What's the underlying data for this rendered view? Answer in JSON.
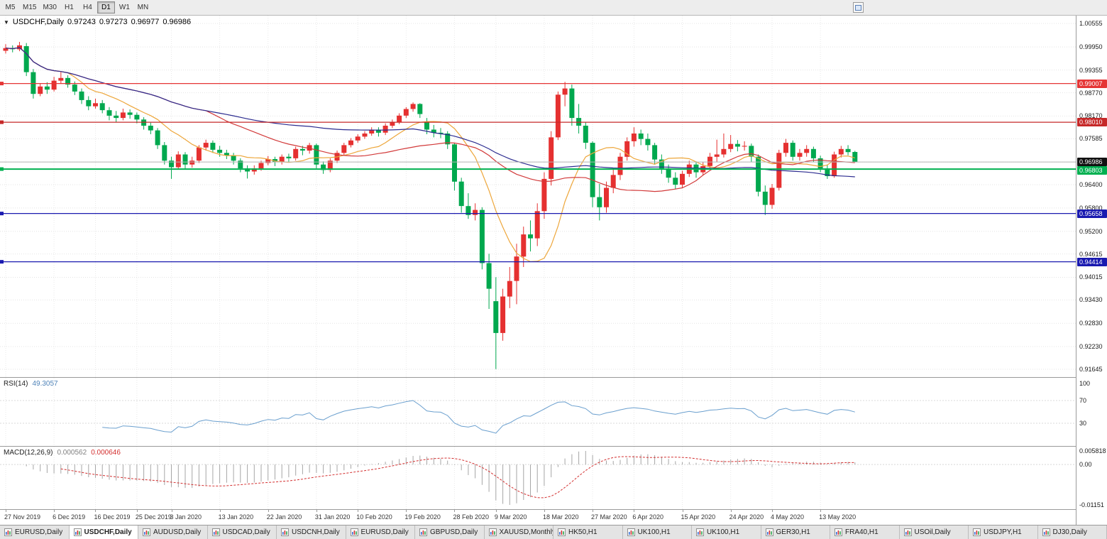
{
  "toolbar": {
    "timeframes": [
      "M5",
      "M15",
      "M30",
      "H1",
      "H4",
      "D1",
      "W1",
      "MN"
    ],
    "active_timeframe": "D1"
  },
  "chart_data": {
    "type": "candlestick",
    "symbol": "USDCHF",
    "period": "Daily",
    "title": "USDCHF,Daily",
    "ohlc_display": {
      "open": "0.97243",
      "high": "0.97273",
      "low": "0.96977",
      "close": "0.96986"
    },
    "y_axis_ticks": [
      "1.00555",
      "0.99950",
      "0.99355",
      "0.98770",
      "0.98170",
      "0.97585",
      "0.96985",
      "0.96400",
      "0.95800",
      "0.95200",
      "0.94615",
      "0.94015",
      "0.93430",
      "0.92830",
      "0.92230",
      "0.91645"
    ],
    "x_labels": [
      {
        "text": "27 Nov 2019",
        "bar": 0
      },
      {
        "text": "6 Dec 2019",
        "bar": 7
      },
      {
        "text": "16 Dec 2019",
        "bar": 13
      },
      {
        "text": "25 Dec 2019",
        "bar": 19
      },
      {
        "text": "3 Jan 2020",
        "bar": 24
      },
      {
        "text": "13 Jan 2020",
        "bar": 31
      },
      {
        "text": "22 Jan 2020",
        "bar": 38
      },
      {
        "text": "31 Jan 2020",
        "bar": 45
      },
      {
        "text": "10 Feb 2020",
        "bar": 51
      },
      {
        "text": "19 Feb 2020",
        "bar": 58
      },
      {
        "text": "28 Feb 2020",
        "bar": 65
      },
      {
        "text": "9 Mar 2020",
        "bar": 71
      },
      {
        "text": "18 Mar 2020",
        "bar": 78
      },
      {
        "text": "27 Mar 2020",
        "bar": 85
      },
      {
        "text": "6 Apr 2020",
        "bar": 91
      },
      {
        "text": "15 Apr 2020",
        "bar": 98
      },
      {
        "text": "24 Apr 2020",
        "bar": 105
      },
      {
        "text": "4 May 2020",
        "bar": 111
      },
      {
        "text": "13 May 2020",
        "bar": 118
      }
    ],
    "current_price": {
      "text": "0.96986",
      "value": 0.96986
    },
    "horizontal_lines": [
      {
        "text": "0.99007",
        "value": 0.99007,
        "color": "#e53535"
      },
      {
        "text": "0.98010",
        "value": 0.9801,
        "color": "#c62828"
      },
      {
        "text": "0.96803",
        "value": 0.96803,
        "color": "#00b050"
      },
      {
        "text": "0.95658",
        "value": 0.95658,
        "color": "#1a1ab0"
      },
      {
        "text": "0.94414",
        "value": 0.94414,
        "color": "#1a1ab0"
      }
    ],
    "moving_averages": [
      {
        "period": 10,
        "color": "#eda63a"
      },
      {
        "period": 30,
        "color": "#d23a3a"
      },
      {
        "period": 60,
        "color": "#2b2b8f"
      }
    ],
    "candle_colors": {
      "bull": "#e53030",
      "bear": "#00a84e"
    },
    "candles_ohlc": [
      [
        0.9985,
        1.0002,
        0.9978,
        0.9992
      ],
      [
        0.9992,
        0.9999,
        0.9981,
        0.9989
      ],
      [
        0.9989,
        1.0008,
        0.9984,
        0.9999
      ],
      [
        0.9997,
        1.0005,
        0.992,
        0.993
      ],
      [
        0.993,
        0.9938,
        0.9862,
        0.9874
      ],
      [
        0.9874,
        0.9901,
        0.9868,
        0.9893
      ],
      [
        0.9893,
        0.9904,
        0.9874,
        0.9885
      ],
      [
        0.9885,
        0.9918,
        0.988,
        0.9908
      ],
      [
        0.9908,
        0.993,
        0.99,
        0.9915
      ],
      [
        0.9915,
        0.9922,
        0.989,
        0.9898
      ],
      [
        0.9898,
        0.9906,
        0.9871,
        0.988
      ],
      [
        0.988,
        0.9888,
        0.9848,
        0.9858
      ],
      [
        0.9858,
        0.9868,
        0.9832,
        0.9842
      ],
      [
        0.9842,
        0.9862,
        0.9836,
        0.985
      ],
      [
        0.985,
        0.9858,
        0.9824,
        0.9832
      ],
      [
        0.9832,
        0.984,
        0.9806,
        0.9818
      ],
      [
        0.9818,
        0.983,
        0.9802,
        0.9812
      ],
      [
        0.9812,
        0.9836,
        0.9806,
        0.9826
      ],
      [
        0.9826,
        0.9834,
        0.981,
        0.982
      ],
      [
        0.982,
        0.9826,
        0.9798,
        0.9808
      ],
      [
        0.9808,
        0.9814,
        0.9782,
        0.9792
      ],
      [
        0.9792,
        0.98,
        0.977,
        0.978
      ],
      [
        0.978,
        0.9786,
        0.9732,
        0.9742
      ],
      [
        0.9742,
        0.975,
        0.9692,
        0.9702
      ],
      [
        0.9702,
        0.9712,
        0.9655,
        0.9685
      ],
      [
        0.9685,
        0.9726,
        0.968,
        0.9718
      ],
      [
        0.9718,
        0.9724,
        0.968,
        0.9692
      ],
      [
        0.9692,
        0.9712,
        0.9684,
        0.9702
      ],
      [
        0.9702,
        0.9742,
        0.9696,
        0.9736
      ],
      [
        0.9736,
        0.9756,
        0.9728,
        0.9748
      ],
      [
        0.9748,
        0.9754,
        0.9722,
        0.973
      ],
      [
        0.973,
        0.974,
        0.9712,
        0.9722
      ],
      [
        0.9722,
        0.973,
        0.9706,
        0.9716
      ],
      [
        0.9716,
        0.9722,
        0.9692,
        0.9702
      ],
      [
        0.9702,
        0.9708,
        0.9672,
        0.9682
      ],
      [
        0.9682,
        0.969,
        0.9656,
        0.9674
      ],
      [
        0.9674,
        0.969,
        0.9666,
        0.9682
      ],
      [
        0.9682,
        0.9702,
        0.9676,
        0.9696
      ],
      [
        0.9696,
        0.9714,
        0.969,
        0.9706
      ],
      [
        0.9706,
        0.9712,
        0.9688,
        0.9699
      ],
      [
        0.9699,
        0.9718,
        0.9692,
        0.9712
      ],
      [
        0.9712,
        0.972,
        0.9698,
        0.9708
      ],
      [
        0.9708,
        0.9738,
        0.9702,
        0.9732
      ],
      [
        0.9732,
        0.974,
        0.9716,
        0.9728
      ],
      [
        0.9728,
        0.9748,
        0.972,
        0.9742
      ],
      [
        0.9742,
        0.9746,
        0.9682,
        0.9692
      ],
      [
        0.9692,
        0.97,
        0.9668,
        0.9678
      ],
      [
        0.9678,
        0.9708,
        0.9672,
        0.9702
      ],
      [
        0.9702,
        0.9728,
        0.9696,
        0.9722
      ],
      [
        0.9722,
        0.9748,
        0.9716,
        0.9742
      ],
      [
        0.9742,
        0.976,
        0.9736,
        0.9754
      ],
      [
        0.9754,
        0.977,
        0.9748,
        0.9764
      ],
      [
        0.9764,
        0.9778,
        0.9758,
        0.9772
      ],
      [
        0.9772,
        0.9788,
        0.9766,
        0.9782
      ],
      [
        0.9782,
        0.9788,
        0.9764,
        0.9774
      ],
      [
        0.9774,
        0.9798,
        0.9768,
        0.9792
      ],
      [
        0.9792,
        0.9808,
        0.9786,
        0.9802
      ],
      [
        0.9802,
        0.9824,
        0.9796,
        0.9818
      ],
      [
        0.9818,
        0.984,
        0.9812,
        0.9835
      ],
      [
        0.9835,
        0.9852,
        0.9828,
        0.9848
      ],
      [
        0.9848,
        0.985,
        0.9812,
        0.9822
      ],
      [
        0.9802,
        0.9812,
        0.977,
        0.9782
      ],
      [
        0.9782,
        0.9794,
        0.9762,
        0.9774
      ],
      [
        0.9774,
        0.9786,
        0.976,
        0.9772
      ],
      [
        0.9772,
        0.9778,
        0.9732,
        0.9744
      ],
      [
        0.9744,
        0.9748,
        0.9625,
        0.9648
      ],
      [
        0.9648,
        0.9658,
        0.9568,
        0.9585
      ],
      [
        0.9585,
        0.9618,
        0.9552,
        0.9562
      ],
      [
        0.9562,
        0.9592,
        0.9548,
        0.9575
      ],
      [
        0.9575,
        0.9582,
        0.9422,
        0.9438
      ],
      [
        0.9438,
        0.9462,
        0.932,
        0.9372
      ],
      [
        0.934,
        0.9402,
        0.9165,
        0.9258
      ],
      [
        0.9258,
        0.9372,
        0.9238,
        0.9352
      ],
      [
        0.9352,
        0.9428,
        0.9322,
        0.9392
      ],
      [
        0.9392,
        0.9488,
        0.9332,
        0.9455
      ],
      [
        0.9455,
        0.9532,
        0.9428,
        0.9512
      ],
      [
        0.9512,
        0.9548,
        0.9468,
        0.9502
      ],
      [
        0.9502,
        0.9592,
        0.9482,
        0.9572
      ],
      [
        0.9572,
        0.9672,
        0.9552,
        0.9655
      ],
      [
        0.9655,
        0.9778,
        0.9638,
        0.9762
      ],
      [
        0.9762,
        0.988,
        0.9755,
        0.9872
      ],
      [
        0.9872,
        0.9905,
        0.9842,
        0.9888
      ],
      [
        0.9888,
        0.9898,
        0.9792,
        0.9812
      ],
      [
        0.9812,
        0.9848,
        0.9772,
        0.9792
      ],
      [
        0.9792,
        0.9802,
        0.9732,
        0.9748
      ],
      [
        0.9748,
        0.9752,
        0.9582,
        0.9608
      ],
      [
        0.9608,
        0.9642,
        0.9548,
        0.9582
      ],
      [
        0.9582,
        0.9648,
        0.9568,
        0.9632
      ],
      [
        0.9632,
        0.9682,
        0.9618,
        0.9665
      ],
      [
        0.9665,
        0.9722,
        0.9652,
        0.9712
      ],
      [
        0.9712,
        0.9762,
        0.9702,
        0.9752
      ],
      [
        0.9752,
        0.9788,
        0.9738,
        0.9772
      ],
      [
        0.9772,
        0.9782,
        0.9742,
        0.9758
      ],
      [
        0.9758,
        0.9772,
        0.9728,
        0.9742
      ],
      [
        0.9742,
        0.9748,
        0.9692,
        0.9705
      ],
      [
        0.9705,
        0.9718,
        0.9668,
        0.9682
      ],
      [
        0.9682,
        0.9692,
        0.9645,
        0.9658
      ],
      [
        0.9658,
        0.9672,
        0.9628,
        0.964
      ],
      [
        0.964,
        0.9676,
        0.9632,
        0.9668
      ],
      [
        0.9668,
        0.9702,
        0.966,
        0.9692
      ],
      [
        0.9692,
        0.97,
        0.9658,
        0.9672
      ],
      [
        0.9672,
        0.9698,
        0.9664,
        0.9688
      ],
      [
        0.9688,
        0.9722,
        0.9682,
        0.9712
      ],
      [
        0.9712,
        0.9756,
        0.9698,
        0.9718
      ],
      [
        0.9718,
        0.9772,
        0.971,
        0.9732
      ],
      [
        0.9732,
        0.9768,
        0.9724,
        0.9745
      ],
      [
        0.9745,
        0.9755,
        0.9726,
        0.9738
      ],
      [
        0.9738,
        0.9752,
        0.9728,
        0.974
      ],
      [
        0.974,
        0.9746,
        0.9698,
        0.9712
      ],
      [
        0.9712,
        0.9718,
        0.961,
        0.9622
      ],
      [
        0.9622,
        0.9638,
        0.9562,
        0.9588
      ],
      [
        0.9588,
        0.9642,
        0.9578,
        0.9632
      ],
      [
        0.9632,
        0.973,
        0.9625,
        0.9722
      ],
      [
        0.9722,
        0.9758,
        0.9712,
        0.9748
      ],
      [
        0.9748,
        0.9754,
        0.9702,
        0.9712
      ],
      [
        0.9712,
        0.9732,
        0.9702,
        0.9722
      ],
      [
        0.9722,
        0.9742,
        0.9712,
        0.9732
      ],
      [
        0.9732,
        0.9738,
        0.9698,
        0.9708
      ],
      [
        0.9708,
        0.9715,
        0.9672,
        0.9682
      ],
      [
        0.9682,
        0.9692,
        0.9655,
        0.9662
      ],
      [
        0.9662,
        0.9725,
        0.9658,
        0.9718
      ],
      [
        0.9718,
        0.974,
        0.971,
        0.9732
      ],
      [
        0.9732,
        0.9742,
        0.9716,
        0.9724
      ],
      [
        0.97243,
        0.97273,
        0.96977,
        0.96986
      ]
    ],
    "indicators": {
      "rsi": {
        "label": "RSI(14)",
        "value": "49.3057",
        "period": 14,
        "color": "#6a9fce",
        "levels": [
          "100",
          "70",
          "30"
        ],
        "level_values": [
          100,
          70,
          30
        ]
      },
      "macd": {
        "label": "MACD(12,26,9)",
        "main_value": "0.000562",
        "signal_value": "0.000646",
        "fast": 12,
        "slow": 26,
        "signal": 9,
        "axis_max": "0.005818",
        "axis_zero": "0.00",
        "axis_min": "-0.01151",
        "hist_color": "#a6a6a6",
        "signal_color": "#d32f2f"
      }
    }
  },
  "tab_bar": {
    "items": [
      "EURUSD,Daily",
      "USDCHF,Daily",
      "AUDUSD,Daily",
      "USDCAD,Daily",
      "USDCNH,Daily",
      "EURUSD,Daily",
      "GBPUSD,Daily",
      "XAUUSD,Monthly",
      "HK50,H1",
      "UK100,H1",
      "UK100,H1",
      "GER30,H1",
      "FRA40,H1",
      "USOil,Daily",
      "USDJPY,H1",
      "DJ30,Daily"
    ],
    "active_index": 1
  }
}
